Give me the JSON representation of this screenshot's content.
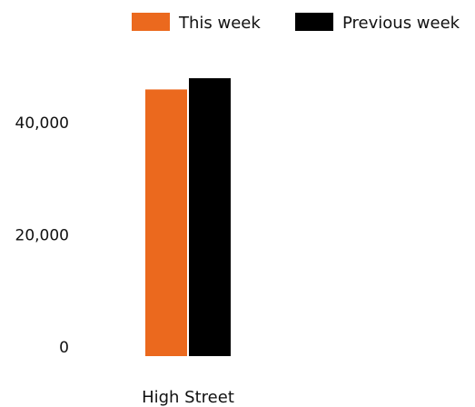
{
  "chart_data": {
    "type": "bar",
    "categories": [
      "High Street"
    ],
    "series": [
      {
        "name": "This week",
        "values": [
          47500
        ],
        "color": "#EB691E"
      },
      {
        "name": "Previous week",
        "values": [
          49500
        ],
        "color": "#000000"
      }
    ],
    "y_ticks": [
      {
        "value": 0,
        "label": "0"
      },
      {
        "value": 20000,
        "label": "20,000"
      },
      {
        "value": 40000,
        "label": "40,000"
      }
    ],
    "ylim": [
      0,
      50000
    ],
    "grid": false,
    "legend_position": "top-right",
    "title": "",
    "xlabel": "",
    "ylabel": ""
  }
}
